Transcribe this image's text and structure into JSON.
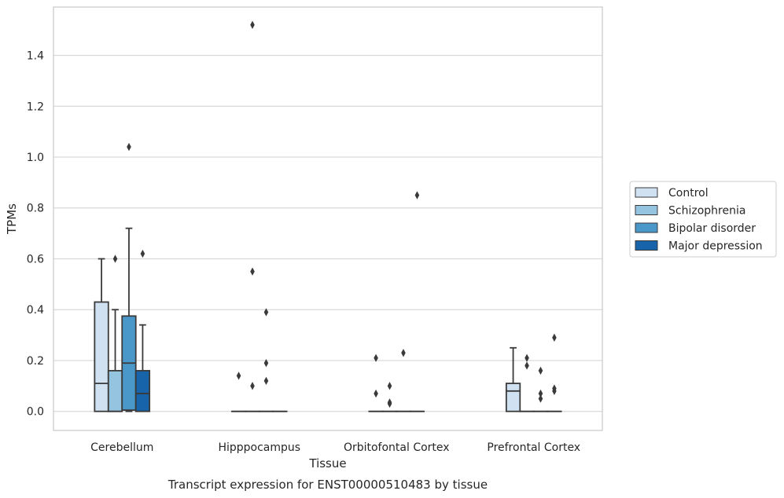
{
  "chart_data": {
    "type": "boxplot",
    "title": "",
    "caption": "Transcript expression for ENST00000510483 by tissue",
    "xlabel": "Tissue",
    "ylabel": "TPMs",
    "ylim": [
      -0.075,
      1.59
    ],
    "yticks": [
      "0.0",
      "0.2",
      "0.4",
      "0.6",
      "0.8",
      "1.0",
      "1.2",
      "1.4"
    ],
    "ytick_values": [
      0,
      0.2,
      0.4,
      0.6,
      0.8,
      1.0,
      1.2,
      1.4
    ],
    "grid": true,
    "legend_position": "right",
    "categories": [
      "Cerebellum",
      "Hipppocampus",
      "Orbitofontal Cortex",
      "Prefrontal Cortex"
    ],
    "series": [
      {
        "name": "Control",
        "color": "#d0e1f2",
        "boxes": [
          {
            "q1": 0,
            "median": 0.11,
            "q3": 0.43,
            "whisker_low": 0,
            "whisker_high": 0.6,
            "outliers": []
          },
          {
            "q1": 0,
            "median": 0,
            "q3": 0,
            "whisker_low": 0,
            "whisker_high": 0,
            "outliers": [
              0.14
            ]
          },
          {
            "q1": 0,
            "median": 0,
            "q3": 0,
            "whisker_low": 0,
            "whisker_high": 0,
            "outliers": [
              0.21,
              0.07
            ]
          },
          {
            "q1": 0,
            "median": 0.08,
            "q3": 0.11,
            "whisker_low": 0,
            "whisker_high": 0.25,
            "outliers": []
          }
        ]
      },
      {
        "name": "Schizophrenia",
        "color": "#94c4df",
        "boxes": [
          {
            "q1": 0,
            "median": 0,
            "q3": 0.16,
            "whisker_low": 0,
            "whisker_high": 0.4,
            "outliers": [
              0.6
            ]
          },
          {
            "q1": 0,
            "median": 0,
            "q3": 0,
            "whisker_low": 0,
            "whisker_high": 0,
            "outliers": [
              1.52,
              0.55,
              0.1
            ]
          },
          {
            "q1": 0,
            "median": 0,
            "q3": 0,
            "whisker_low": 0,
            "whisker_high": 0,
            "outliers": [
              0.1,
              0.035,
              0.03
            ]
          },
          {
            "q1": 0,
            "median": 0,
            "q3": 0,
            "whisker_low": 0,
            "whisker_high": 0,
            "outliers": [
              0.21,
              0.18
            ]
          }
        ]
      },
      {
        "name": "Bipolar disorder",
        "color": "#4a98c9",
        "boxes": [
          {
            "q1": 0.005,
            "median": 0.19,
            "q3": 0.375,
            "whisker_low": 0,
            "whisker_high": 0.72,
            "outliers": [
              1.04
            ]
          },
          {
            "q1": 0,
            "median": 0,
            "q3": 0,
            "whisker_low": 0,
            "whisker_high": 0,
            "outliers": [
              0.39,
              0.19,
              0.12
            ]
          },
          {
            "q1": 0,
            "median": 0,
            "q3": 0,
            "whisker_low": 0,
            "whisker_high": 0,
            "outliers": [
              0.23
            ]
          },
          {
            "q1": 0,
            "median": 0,
            "q3": 0,
            "whisker_low": 0,
            "whisker_high": 0,
            "outliers": [
              0.16,
              0.07,
              0.05
            ]
          }
        ]
      },
      {
        "name": "Major depression",
        "color": "#1764ab",
        "boxes": [
          {
            "q1": 0,
            "median": 0.07,
            "q3": 0.16,
            "whisker_low": 0,
            "whisker_high": 0.34,
            "outliers": [
              0.62
            ]
          },
          {
            "q1": 0,
            "median": 0,
            "q3": 0,
            "whisker_low": 0,
            "whisker_high": 0,
            "outliers": []
          },
          {
            "q1": 0,
            "median": 0,
            "q3": 0,
            "whisker_low": 0,
            "whisker_high": 0,
            "outliers": [
              0.85
            ]
          },
          {
            "q1": 0,
            "median": 0,
            "q3": 0,
            "whisker_low": 0,
            "whisker_high": 0,
            "outliers": [
              0.29,
              0.09,
              0.08
            ]
          }
        ]
      }
    ]
  }
}
